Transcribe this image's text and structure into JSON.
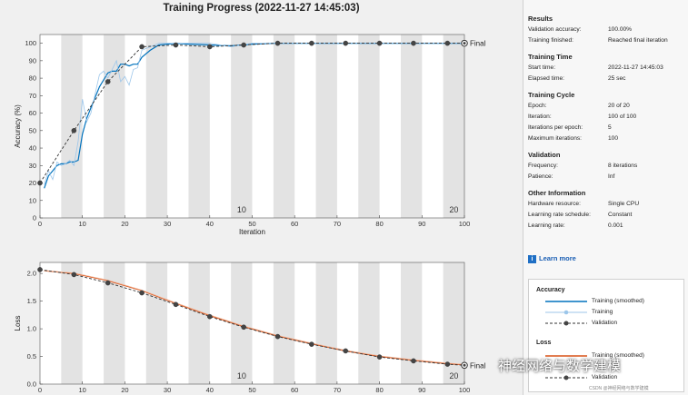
{
  "title": "Training Progress (2022-11-27 14:45:03)",
  "chart_data": [
    {
      "type": "line",
      "ylabel": "Accuracy (%)",
      "xlabel": "Iteration",
      "xlim": [
        0,
        100
      ],
      "ylim": [
        0,
        105
      ],
      "xticks": [
        0,
        10,
        20,
        30,
        40,
        50,
        60,
        70,
        80,
        90,
        100
      ],
      "yticks": [
        0,
        10,
        20,
        30,
        40,
        50,
        60,
        70,
        80,
        90,
        100
      ],
      "epoch_labels": [
        {
          "x": 47.5,
          "text": "10"
        },
        {
          "x": 97.5,
          "text": "20"
        }
      ],
      "final_label": "Final",
      "series": [
        {
          "name": "Training (smoothed)",
          "color": "#0072bd",
          "x": [
            1,
            2,
            3,
            4,
            5,
            6,
            7,
            8,
            9,
            10,
            11,
            12,
            13,
            14,
            15,
            16,
            17,
            18,
            19,
            20,
            21,
            22,
            23,
            24,
            26,
            28,
            30,
            32,
            35,
            40,
            45,
            50,
            55,
            60,
            70,
            80,
            90,
            100
          ],
          "y": [
            17,
            24,
            27,
            30,
            31,
            31,
            32,
            32,
            33,
            48,
            57,
            63,
            69,
            75,
            79,
            83,
            84,
            84,
            88,
            88,
            87,
            88,
            88,
            92,
            96,
            99,
            99.5,
            100,
            99.5,
            99,
            98.5,
            99.5,
            100,
            100,
            100,
            100,
            100,
            100
          ]
        },
        {
          "name": "Training",
          "color": "#9cc6ea",
          "x": [
            1,
            2,
            3,
            4,
            5,
            6,
            7,
            8,
            9,
            10,
            11,
            12,
            13,
            14,
            15,
            16,
            17,
            18,
            19,
            20,
            21,
            22,
            23,
            24,
            26,
            28,
            30,
            32,
            35,
            40,
            45,
            50,
            55,
            60,
            70,
            80,
            90,
            100
          ],
          "y": [
            19,
            27,
            22,
            32,
            30,
            31,
            33,
            30,
            44,
            68,
            55,
            60,
            71,
            82,
            84,
            80,
            85,
            90,
            78,
            81,
            76,
            85,
            86,
            96,
            98,
            100,
            100,
            100,
            100,
            100,
            98,
            100,
            100,
            100,
            100,
            100,
            100,
            100
          ]
        },
        {
          "name": "Validation",
          "color": "#333333",
          "x": [
            0,
            8,
            16,
            24,
            32,
            40,
            48,
            56,
            64,
            72,
            80,
            88,
            96,
            100
          ],
          "y": [
            20,
            50,
            78,
            98,
            99,
            98,
            99,
            100,
            100,
            100,
            100,
            100,
            100,
            100
          ]
        }
      ]
    },
    {
      "type": "line",
      "ylabel": "Loss",
      "xlabel": "Iteration",
      "xlim": [
        0,
        100
      ],
      "ylim": [
        0,
        2.2
      ],
      "xticks": [
        0,
        10,
        20,
        30,
        40,
        50,
        60,
        70,
        80,
        90,
        100
      ],
      "yticks": [
        0,
        0.5,
        1,
        1.5,
        2
      ],
      "epoch_labels": [
        {
          "x": 47.5,
          "text": "10"
        },
        {
          "x": 97.5,
          "text": "20"
        }
      ],
      "final_label": "Final",
      "series": [
        {
          "name": "Training (smoothed)",
          "color": "#d95319",
          "x": [
            1,
            8,
            16,
            24,
            32,
            40,
            48,
            56,
            64,
            72,
            80,
            88,
            96,
            100
          ],
          "y": [
            2.05,
            2.0,
            1.87,
            1.69,
            1.46,
            1.24,
            1.04,
            0.87,
            0.73,
            0.6,
            0.5,
            0.43,
            0.37,
            0.35
          ]
        },
        {
          "name": "Training",
          "color": "#f0b89c",
          "x": [
            1,
            8,
            16,
            24,
            32,
            40,
            48,
            56,
            64,
            72,
            80,
            88,
            96,
            100
          ],
          "y": [
            2.05,
            2.01,
            1.88,
            1.7,
            1.47,
            1.25,
            1.05,
            0.88,
            0.74,
            0.61,
            0.51,
            0.44,
            0.38,
            0.36
          ]
        },
        {
          "name": "Validation",
          "color": "#333333",
          "x": [
            0,
            8,
            16,
            24,
            32,
            40,
            48,
            56,
            64,
            72,
            80,
            88,
            96,
            100
          ],
          "y": [
            2.07,
            1.98,
            1.83,
            1.65,
            1.44,
            1.22,
            1.03,
            0.86,
            0.72,
            0.6,
            0.49,
            0.42,
            0.36,
            0.34
          ]
        }
      ]
    }
  ],
  "side": {
    "results": {
      "heading": "Results",
      "rows": [
        [
          "Validation accuracy:",
          "100.00%"
        ],
        [
          "Training finished:",
          "Reached final iteration"
        ]
      ]
    },
    "time": {
      "heading": "Training Time",
      "rows": [
        [
          "Start time:",
          "2022-11-27 14:45:03"
        ],
        [
          "Elapsed time:",
          "25 sec"
        ]
      ]
    },
    "cycle": {
      "heading": "Training Cycle",
      "rows": [
        [
          "Epoch:",
          "20 of 20"
        ],
        [
          "Iteration:",
          "100 of 100"
        ],
        [
          "Iterations per epoch:",
          "5"
        ],
        [
          "Maximum iterations:",
          "100"
        ]
      ]
    },
    "validation": {
      "heading": "Validation",
      "rows": [
        [
          "Frequency:",
          "8 iterations"
        ],
        [
          "Patience:",
          "Inf"
        ]
      ]
    },
    "other": {
      "heading": "Other Information",
      "rows": [
        [
          "Hardware resource:",
          "Single CPU"
        ],
        [
          "Learning rate schedule:",
          "Constant"
        ],
        [
          "Learning rate:",
          "0.001"
        ]
      ]
    },
    "learn_more": "Learn more",
    "legend": {
      "accuracy_heading": "Accuracy",
      "accuracy_items": [
        "Training (smoothed)",
        "Training",
        "Validation"
      ],
      "loss_heading": "Loss",
      "loss_items": [
        "Training (smoothed)",
        "Validation"
      ]
    }
  },
  "watermark": "神经网络与数学建模",
  "watermark_small": "CSDN @神经网络与数学建模"
}
